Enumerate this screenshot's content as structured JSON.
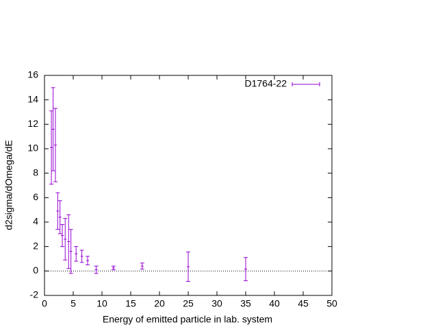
{
  "chart_data": {
    "type": "errorbar",
    "xlabel": "Energy of emitted particle in lab. system",
    "ylabel": "d2sigma/dOmega/dE",
    "xlim": [
      0,
      50
    ],
    "ylim": [
      -2,
      16
    ],
    "xticks": [
      0,
      5,
      10,
      15,
      20,
      25,
      30,
      35,
      40,
      45,
      50
    ],
    "yticks": [
      -2,
      0,
      2,
      4,
      6,
      8,
      10,
      12,
      14,
      16
    ],
    "zero_line": true,
    "legend": "top-right",
    "series": [
      {
        "name": "D1764-22",
        "color": "#9400d3",
        "x": [
          1.2,
          1.5,
          1.9,
          2.3,
          2.7,
          3.1,
          3.6,
          4.2,
          4.6,
          5.5,
          6.5,
          7.5,
          9,
          12,
          17,
          25,
          35
        ],
        "values": [
          10.1,
          11.6,
          10.3,
          4.9,
          4.4,
          2.9,
          2.6,
          2.4,
          1.6,
          1.4,
          1.2,
          0.85,
          0.1,
          0.25,
          0.4,
          0.35,
          0.15
        ],
        "errors": [
          3.0,
          3.4,
          3.0,
          1.5,
          1.35,
          0.9,
          1.7,
          2.2,
          1.8,
          0.6,
          0.5,
          0.35,
          0.3,
          0.15,
          0.25,
          1.2,
          0.95
        ]
      }
    ]
  }
}
